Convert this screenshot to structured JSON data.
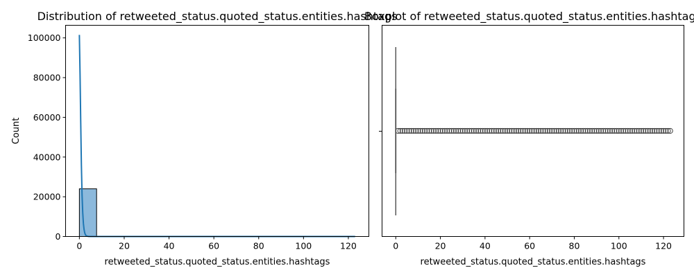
{
  "chart_data": [
    {
      "type": "histogram",
      "title": "Distribution of retweeted_status.quoted_status.entities.hashtags",
      "xlabel": "retweeted_status.quoted_status.entities.hashtags",
      "ylabel": "Count",
      "xlim": [
        -6.15,
        129.15
      ],
      "ylim": [
        0,
        106350
      ],
      "xticks": [
        0,
        20,
        40,
        60,
        80,
        100,
        120
      ],
      "yticks": [
        0,
        20000,
        40000,
        60000,
        80000,
        100000
      ],
      "grid": false,
      "bins": [
        {
          "x0": 0,
          "x1": 7.6875,
          "count": 24000
        },
        {
          "x0": 7.6875,
          "x1": 15.375,
          "count": 25
        },
        {
          "x0": 15.375,
          "x1": 23.0625,
          "count": 20
        },
        {
          "x0": 23.0625,
          "x1": 30.75,
          "count": 18
        },
        {
          "x0": 30.75,
          "x1": 38.4375,
          "count": 15
        },
        {
          "x0": 38.4375,
          "x1": 46.125,
          "count": 15
        },
        {
          "x0": 46.125,
          "x1": 53.8125,
          "count": 14
        },
        {
          "x0": 53.8125,
          "x1": 61.5,
          "count": 14
        },
        {
          "x0": 61.5,
          "x1": 69.1875,
          "count": 13
        },
        {
          "x0": 69.1875,
          "x1": 76.875,
          "count": 13
        },
        {
          "x0": 76.875,
          "x1": 84.5625,
          "count": 12
        },
        {
          "x0": 84.5625,
          "x1": 92.25,
          "count": 12
        },
        {
          "x0": 92.25,
          "x1": 99.9375,
          "count": 12
        },
        {
          "x0": 99.9375,
          "x1": 107.625,
          "count": 11
        },
        {
          "x0": 107.625,
          "x1": 115.3125,
          "count": 11
        },
        {
          "x0": 115.3125,
          "x1": 123,
          "count": 10
        }
      ],
      "kde": {
        "x": [
          0,
          0.3,
          0.6,
          0.9,
          1.2,
          1.5,
          1.8,
          2.1,
          2.4,
          2.7,
          3.0,
          3.5,
          4.0,
          5.0,
          6.0,
          8.0,
          123
        ],
        "y": [
          101500,
          82000,
          58000,
          36000,
          21000,
          12000,
          6500,
          3500,
          1800,
          900,
          450,
          160,
          60,
          15,
          5,
          1,
          0
        ]
      },
      "colors": {
        "bar_fill": "#8cb9dc",
        "bar_edge": "#000000",
        "kde_line": "#1f77b4"
      }
    },
    {
      "type": "box",
      "title": "Boxplot of retweeted_status.quoted_status.entities.hashtags",
      "xlabel": "retweeted_status.quoted_status.entities.hashtags",
      "xlim": [
        -6.15,
        129.15
      ],
      "xticks": [
        0,
        20,
        40,
        60,
        80,
        100,
        120
      ],
      "grid": false,
      "box": {
        "q1": 0,
        "median": 0,
        "q3": 0,
        "whisker_low": 0,
        "whisker_high": 0
      },
      "outliers": [
        1,
        2,
        3,
        4,
        5,
        6,
        7,
        8,
        9,
        10,
        11,
        12,
        13,
        14,
        15,
        16,
        17,
        18,
        19,
        20,
        21,
        22,
        23,
        24,
        25,
        26,
        27,
        28,
        29,
        30,
        31,
        32,
        33,
        34,
        35,
        36,
        37,
        38,
        39,
        40,
        41,
        42,
        43,
        44,
        45,
        46,
        47,
        48,
        49,
        50,
        51,
        52,
        53,
        54,
        55,
        56,
        57,
        58,
        59,
        60,
        61,
        62,
        63,
        64,
        65,
        66,
        67,
        68,
        69,
        70,
        71,
        72,
        73,
        74,
        75,
        76,
        77,
        78,
        79,
        80,
        81,
        82,
        83,
        84,
        85,
        86,
        87,
        88,
        89,
        90,
        91,
        92,
        93,
        94,
        95,
        96,
        97,
        98,
        99,
        100,
        101,
        102,
        103,
        104,
        105,
        106,
        107,
        108,
        109,
        110,
        111,
        112,
        113,
        114,
        115,
        116,
        117,
        118,
        119,
        120,
        121,
        122,
        123
      ],
      "colors": {
        "box_line": "#3f3f3f",
        "outlier_edge": "#3f3f3f"
      }
    }
  ]
}
